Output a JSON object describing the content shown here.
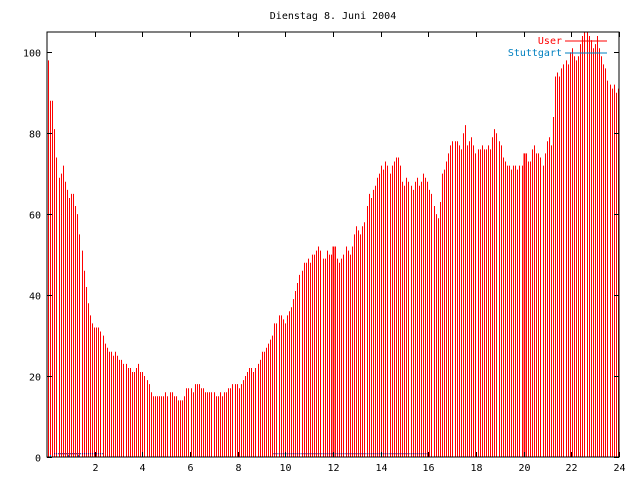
{
  "chart_data": {
    "type": "bar",
    "title": "Dienstag 8. Juni 2004",
    "xlim": [
      0,
      24
    ],
    "ylim": [
      0,
      105
    ],
    "xticks": [
      2,
      4,
      6,
      8,
      10,
      12,
      14,
      16,
      18,
      20,
      22,
      24
    ],
    "yticks": [
      0,
      20,
      40,
      60,
      80,
      100
    ],
    "grid": false,
    "legend_position": "top-right",
    "series": [
      {
        "name": "User",
        "color": "#ff0000",
        "values": [
          98,
          88,
          88,
          81,
          74,
          69,
          70,
          72,
          68,
          66,
          64,
          65,
          65,
          62,
          60,
          55,
          51,
          46,
          42,
          38,
          35,
          33,
          32,
          32,
          32,
          31,
          30,
          28,
          27,
          26,
          26,
          25,
          26,
          25,
          24,
          24,
          23,
          23,
          22,
          22,
          21,
          21,
          22,
          23,
          21,
          21,
          20,
          19,
          18,
          16,
          15,
          15,
          15,
          15,
          15,
          15,
          16,
          15,
          16,
          16,
          15,
          15,
          14,
          14,
          14,
          15,
          17,
          17,
          17,
          16,
          18,
          18,
          18,
          17,
          17,
          16,
          16,
          16,
          16,
          16,
          15,
          15,
          16,
          15,
          16,
          16,
          17,
          17,
          18,
          18,
          18,
          17,
          18,
          19,
          20,
          21,
          22,
          22,
          21,
          22,
          23,
          24,
          26,
          26,
          27,
          28,
          29,
          30,
          33,
          33,
          35,
          35,
          34,
          33,
          35,
          36,
          37,
          39,
          41,
          43,
          45,
          46,
          48,
          48,
          49,
          48,
          50,
          50,
          51,
          52,
          51,
          49,
          49,
          51,
          50,
          50,
          51,
          52,
          49,
          48,
          49,
          50,
          52,
          51,
          50,
          52,
          55,
          57,
          56,
          55,
          57,
          58,
          62,
          65,
          64,
          66,
          67,
          69,
          70,
          72,
          71,
          73,
          72,
          70,
          72,
          73,
          74,
          74,
          72,
          68,
          67,
          69,
          68,
          67,
          66,
          68,
          69,
          67,
          68,
          70,
          69,
          68,
          66,
          65,
          62,
          60,
          59,
          63,
          70,
          71,
          73,
          75,
          77,
          78,
          78,
          78,
          77,
          76,
          80,
          82,
          77,
          78,
          79,
          77,
          75,
          76,
          76,
          77,
          76,
          76,
          77,
          76,
          79,
          81,
          80,
          78,
          77,
          74,
          73,
          72,
          72,
          71,
          72,
          72,
          71,
          72,
          72,
          74,
          75,
          73,
          73,
          76,
          77,
          75,
          75,
          74,
          72,
          75,
          78,
          79,
          77,
          84,
          94,
          95,
          94,
          96,
          97,
          98,
          97,
          100,
          101,
          99,
          98,
          99,
          102,
          104,
          105,
          105,
          104,
          103,
          101,
          102,
          104,
          101,
          99,
          97,
          96,
          93,
          92,
          91,
          92,
          90,
          91
        ]
      },
      {
        "name": "Stuttgart",
        "color": "#0080c0",
        "values": [
          0,
          0.5,
          0,
          0,
          0,
          0,
          0,
          0,
          0,
          0,
          0.5,
          0,
          0,
          0,
          0,
          0.5,
          0,
          0,
          0,
          0,
          0,
          0,
          0,
          0,
          0,
          0,
          0,
          0,
          0,
          0,
          0,
          0,
          0,
          0,
          0,
          0,
          0,
          0,
          0,
          0,
          0,
          0,
          0,
          0,
          0,
          0,
          0,
          0,
          0,
          0,
          0,
          0,
          0,
          0,
          0,
          0,
          0,
          0,
          0,
          0,
          0,
          0,
          0,
          0,
          0,
          0,
          0,
          0,
          0,
          0,
          0,
          0,
          0,
          0,
          0,
          0,
          0,
          0,
          0,
          0,
          0,
          0,
          0,
          0,
          0,
          0,
          0,
          0,
          0,
          0,
          0,
          0,
          0,
          0,
          0,
          0,
          0,
          0,
          0,
          0,
          0,
          0,
          0,
          0,
          0,
          0,
          0,
          0,
          0,
          0,
          0,
          0,
          0,
          0,
          0,
          0,
          0,
          0,
          0,
          0,
          0,
          0,
          0,
          0,
          0,
          0,
          0,
          0,
          0,
          0,
          0,
          0,
          0,
          0,
          0,
          0,
          0,
          0,
          0,
          0,
          0,
          0,
          0,
          0,
          0,
          0,
          0,
          0,
          0,
          0,
          0,
          0,
          0,
          0,
          0,
          0,
          0,
          0,
          0,
          0,
          0,
          0,
          0,
          0,
          0,
          0,
          0,
          0,
          0,
          0,
          0,
          0,
          0,
          0,
          0,
          0,
          0,
          0,
          0,
          0,
          0,
          0,
          0,
          0,
          0,
          0,
          0,
          0,
          0,
          0,
          0,
          0,
          0,
          0,
          0,
          0,
          0,
          0,
          0,
          0,
          0,
          0,
          0,
          0,
          0,
          0,
          0,
          0,
          0,
          0,
          0,
          0,
          0,
          0,
          0,
          0,
          0,
          0,
          0,
          0,
          0,
          0,
          0,
          0,
          0,
          0,
          0,
          0,
          0,
          0,
          0,
          0,
          0,
          0,
          0,
          0,
          0,
          0,
          0,
          0,
          0,
          0,
          0,
          0,
          0,
          0,
          0,
          0,
          0,
          0,
          0,
          0,
          0,
          0,
          0,
          0,
          0,
          0,
          0,
          0,
          0,
          0,
          0,
          0,
          0,
          0,
          0,
          0,
          0,
          0,
          0,
          0,
          0,
          0,
          0,
          0,
          0,
          0,
          0,
          0,
          0,
          0
        ]
      }
    ],
    "spikes": [
      {
        "series": "User",
        "x": 12,
        "value": 52
      },
      {
        "series": "User",
        "x": 20,
        "value": 75
      }
    ],
    "baseline_segments": [
      {
        "series": "Stuttgart",
        "x_start": 0.3,
        "x_end": 2.4,
        "value": 0.8
      },
      {
        "series": "Stuttgart",
        "x_start": 9.5,
        "x_end": 16,
        "value": 0.8
      }
    ]
  }
}
